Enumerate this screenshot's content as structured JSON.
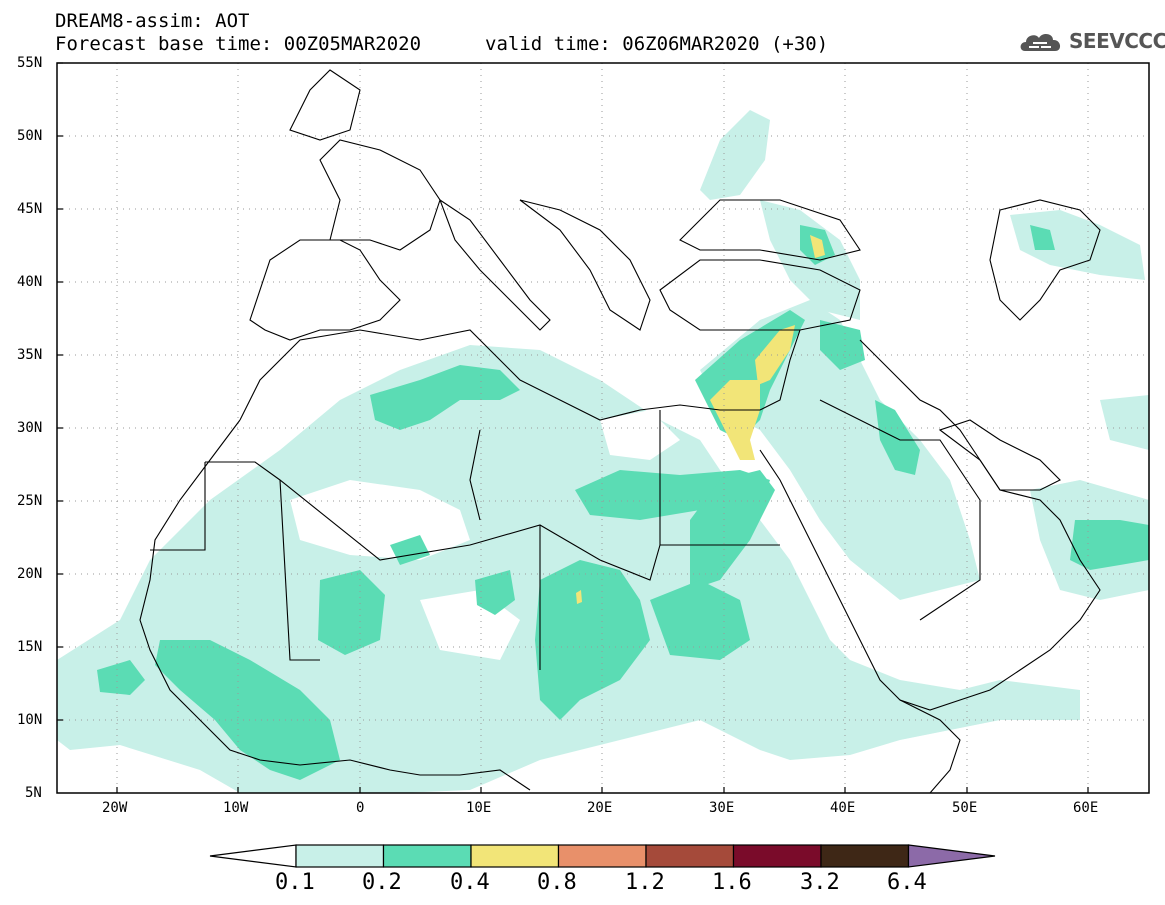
{
  "title": {
    "line1": "DREAM8-assim: AOT",
    "line2": "Forecast base time: 00Z05MAR2020",
    "valid": "valid time: 06Z06MAR2020 (+30)"
  },
  "logo": {
    "text": "SEEVCCC",
    "icon": "cloud-logo-icon"
  },
  "latitude_labels": [
    "55N",
    "50N",
    "45N",
    "40N",
    "35N",
    "30N",
    "25N",
    "20N",
    "15N",
    "10N",
    "5N"
  ],
  "longitude_labels": [
    "20W",
    "10W",
    "0",
    "10E",
    "20E",
    "30E",
    "40E",
    "50E",
    "60E"
  ],
  "colorbar": {
    "levels": [
      "0.1",
      "0.2",
      "0.4",
      "0.8",
      "1.2",
      "1.6",
      "3.2",
      "6.4"
    ],
    "colors": [
      "#ffffff",
      "#c8f0e8",
      "#5bdcb4",
      "#f2e578",
      "#e8906a",
      "#a54a3a",
      "#7a0b2a",
      "#3e2716",
      "#8c6aa8"
    ]
  },
  "map": {
    "extent_lon": [
      -25,
      65
    ],
    "extent_lat": [
      5,
      55
    ],
    "land_color": "#ffffff",
    "grid": "dotted"
  }
}
